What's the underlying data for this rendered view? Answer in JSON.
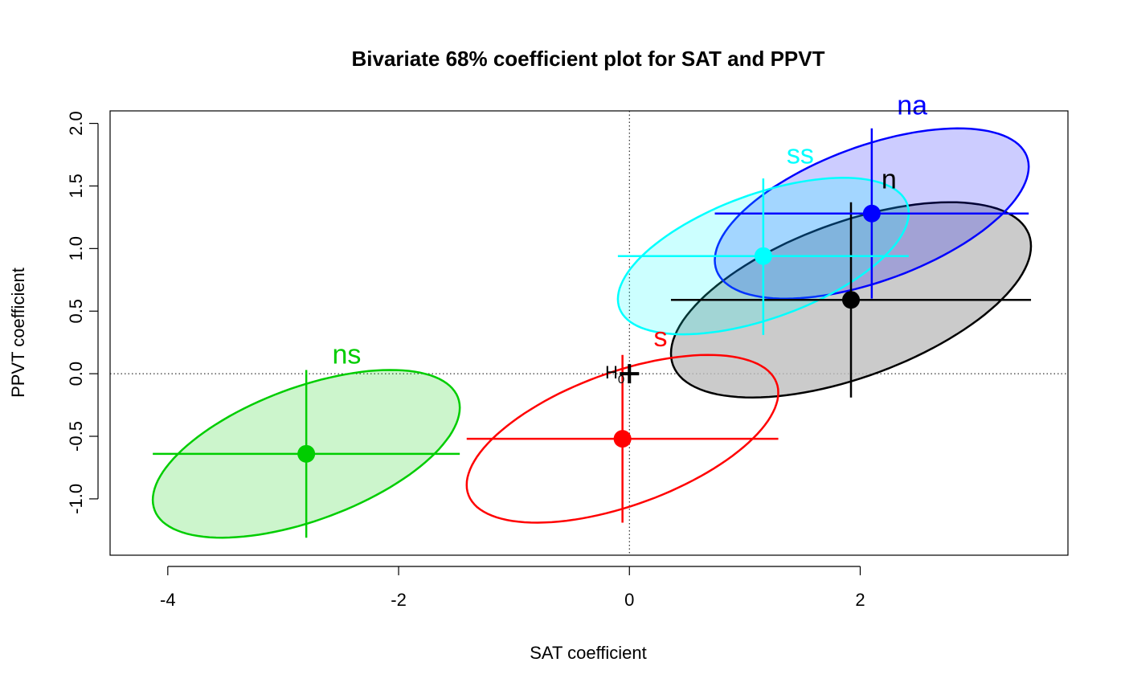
{
  "chart_data": {
    "type": "scatter",
    "title": "Bivariate 68% coefficient plot for SAT and PPVT",
    "xlabel": "SAT coefficient",
    "ylabel": "PPVT coefficient",
    "xlim": [
      -4.5,
      3.8
    ],
    "ylim": [
      -1.45,
      2.1
    ],
    "xticks": [
      -4,
      -2,
      0,
      2
    ],
    "yticks": [
      -1.0,
      -0.5,
      0.0,
      0.5,
      1.0,
      1.5,
      2.0
    ],
    "xtick_labels": [
      "-4",
      "-2",
      "0",
      "2"
    ],
    "ytick_labels": [
      "-1.0",
      "-0.5",
      "0.0",
      "0.5",
      "1.0",
      "1.5",
      "2.0"
    ],
    "grid": false,
    "reference_lines": {
      "x": 0,
      "y": 0,
      "style": "dotted"
    },
    "h0": {
      "label": "H",
      "subscript": "0",
      "x": 0,
      "y": 0
    },
    "series": [
      {
        "name": "n",
        "color": "#000000",
        "fill": "#bebebe",
        "fill_opacity": 0.8,
        "center": [
          1.92,
          0.59
        ],
        "x_range": [
          0.36,
          3.48
        ],
        "y_range": [
          -0.19,
          1.37
        ],
        "corr": 0.55,
        "label_pos": [
          2.25,
          1.48
        ]
      },
      {
        "name": "na",
        "color": "#0000ff",
        "fill": "#0000ff",
        "fill_opacity": 0.2,
        "center": [
          2.1,
          1.28
        ],
        "x_range": [
          0.74,
          3.46
        ],
        "y_range": [
          0.6,
          1.96
        ],
        "corr": 0.55,
        "label_pos": [
          2.45,
          2.07
        ]
      },
      {
        "name": "ns",
        "color": "#00cd00",
        "fill": "#00cd00",
        "fill_opacity": 0.2,
        "center": [
          -2.8,
          -0.64
        ],
        "x_range": [
          -4.13,
          -1.47
        ],
        "y_range": [
          -1.31,
          0.03
        ],
        "corr": 0.55,
        "label_pos": [
          -2.45,
          0.08
        ]
      },
      {
        "name": "s",
        "color": "#ff0000",
        "fill": "none",
        "fill_opacity": 0,
        "center": [
          -0.06,
          -0.52
        ],
        "x_range": [
          -1.41,
          1.29
        ],
        "y_range": [
          -1.19,
          0.15
        ],
        "corr": 0.55,
        "label_pos": [
          0.27,
          0.22
        ]
      },
      {
        "name": "ss",
        "color": "#00ffff",
        "fill": "#00ffff",
        "fill_opacity": 0.2,
        "center": [
          1.16,
          0.94
        ],
        "x_range": [
          -0.1,
          2.42
        ],
        "y_range": [
          0.31,
          1.56
        ],
        "corr": 0.55,
        "label_pos": [
          1.48,
          1.68
        ]
      }
    ]
  }
}
